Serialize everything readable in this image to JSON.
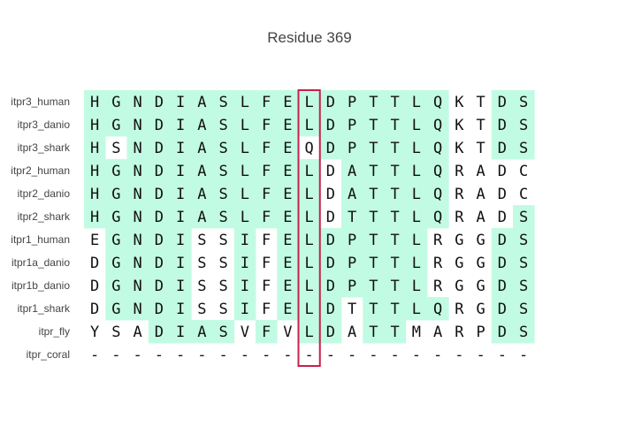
{
  "chart_data": {
    "type": "table",
    "title": "Residue 369",
    "rows": [
      {
        "label": "itpr3_human",
        "residues": "HGNDIASLFELDPTTLQKTDS",
        "conserved": "111111111111111110011"
      },
      {
        "label": "itpr3_danio",
        "residues": "HGNDIASLFELDPTTLQKTDS",
        "conserved": "111111111111111110011"
      },
      {
        "label": "itpr3_shark",
        "residues": "HSNDIASLFEQDPTTLQKTDS",
        "conserved": "101111111101111110011"
      },
      {
        "label": "itpr2_human",
        "residues": "HGNDIASLFELDATTLQRADC",
        "conserved": "111111111110111110000"
      },
      {
        "label": "itpr2_danio",
        "residues": "HGNDIASLFELDATTLQRADC",
        "conserved": "111111111110111110000"
      },
      {
        "label": "itpr2_shark",
        "residues": "HGNDIASLFELDTTTLQRADS",
        "conserved": "111111111110111110001"
      },
      {
        "label": "itpr1_human",
        "residues": "EGNDISSIFELDPTTLRGGDS",
        "conserved": "011110010111111100011"
      },
      {
        "label": "itpr1a_danio",
        "residues": "DGNDISSIFELDPTTLRGGDS",
        "conserved": "011110010111111100011"
      },
      {
        "label": "itpr1b_danio",
        "residues": "DGNDISSIFELDPTTLRGGDS",
        "conserved": "011110010111111100011"
      },
      {
        "label": "itpr1_shark",
        "residues": "DGNDISSIFELDTTTLQRGDS",
        "conserved": "011110010111011110011"
      },
      {
        "label": "itpr_fly",
        "residues": "YSADIASVFVLDATTMARPDS",
        "conserved": "000111101011011000011"
      },
      {
        "label": "itpr_coral",
        "residues": "---------------------",
        "conserved": "000000000000000000000"
      }
    ],
    "highlight_column": 10,
    "highlight_residue": 369,
    "conserved_color": "#c2fbe3",
    "highlight_color": "#c8204a",
    "grid": false,
    "legend": "none"
  }
}
